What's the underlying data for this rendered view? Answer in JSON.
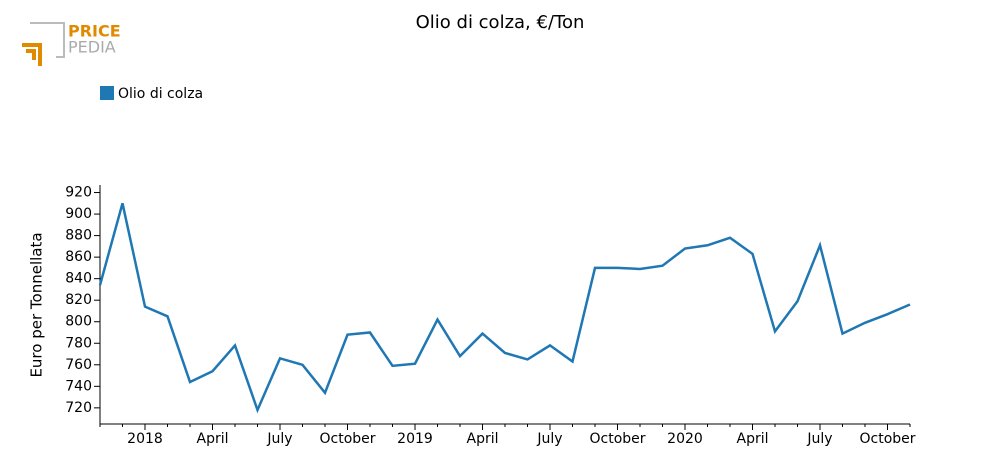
{
  "logo": {
    "line1": "PRICE",
    "line2": "PEDIA"
  },
  "chart_data": {
    "type": "line",
    "title": "Olio di colza, €/Ton",
    "y_label": "Euro per Tonnellata",
    "x": [
      "2017-11",
      "2017-12",
      "2018-01",
      "2018-02",
      "2018-03",
      "2018-04",
      "2018-05",
      "2018-06",
      "2018-07",
      "2018-08",
      "2018-09",
      "2018-10",
      "2018-11",
      "2018-12",
      "2019-01",
      "2019-02",
      "2019-03",
      "2019-04",
      "2019-05",
      "2019-06",
      "2019-07",
      "2019-08",
      "2019-09",
      "2019-10",
      "2019-11",
      "2019-12",
      "2020-01",
      "2020-02",
      "2020-03",
      "2020-04",
      "2020-05",
      "2020-06",
      "2020-07",
      "2020-08",
      "2020-09",
      "2020-10",
      "2020-11"
    ],
    "series": [
      {
        "name": "Olio di colza",
        "color": "#1f77b4",
        "values": [
          834,
          910,
          814,
          805,
          744,
          754,
          778,
          718,
          766,
          760,
          734,
          788,
          790,
          759,
          761,
          802,
          768,
          789,
          771,
          765,
          778,
          763,
          850,
          850,
          849,
          852,
          868,
          871,
          878,
          863,
          791,
          819,
          871,
          789,
          799,
          807,
          816
        ]
      }
    ],
    "xlim": [
      "2017-11",
      "2020-11"
    ],
    "xticks": [
      {
        "value": "2018-01",
        "label": "2018"
      },
      {
        "value": "2018-04",
        "label": "April"
      },
      {
        "value": "2018-07",
        "label": "July"
      },
      {
        "value": "2018-10",
        "label": "October"
      },
      {
        "value": "2019-01",
        "label": "2019"
      },
      {
        "value": "2019-04",
        "label": "April"
      },
      {
        "value": "2019-07",
        "label": "July"
      },
      {
        "value": "2019-10",
        "label": "October"
      },
      {
        "value": "2020-01",
        "label": "2020"
      },
      {
        "value": "2020-04",
        "label": "April"
      },
      {
        "value": "2020-07",
        "label": "July"
      },
      {
        "value": "2020-10",
        "label": "October"
      }
    ],
    "ylim": [
      705,
      927
    ],
    "yticks": [
      720,
      740,
      760,
      780,
      800,
      820,
      840,
      860,
      880,
      900,
      920
    ],
    "grid": false
  }
}
